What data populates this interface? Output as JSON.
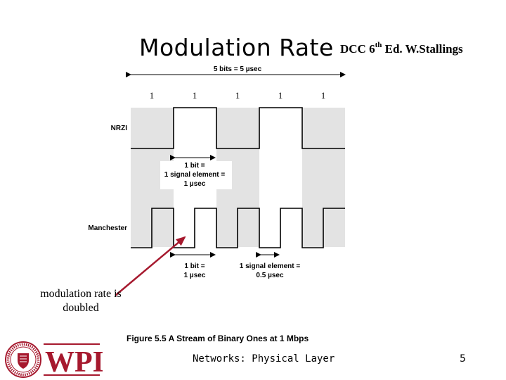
{
  "slide": {
    "title": "Modulation Rate",
    "reference_prefix": "DCC 6",
    "reference_sup": "th",
    "reference_suffix": " Ed. W.Stallings",
    "note": "modulation rate is doubled",
    "footer": "Networks: Physical Layer",
    "page_number": "5"
  },
  "figure": {
    "span_label": "5 bits = 5 µsec",
    "bit_values": [
      "1",
      "1",
      "1",
      "1",
      "1"
    ],
    "nrzi_label": "NRZI",
    "manchester_label": "Manchester",
    "nrzi_annotation": [
      "1 bit =",
      "1 signal element =",
      "1 µsec"
    ],
    "manchester_bit_annotation": [
      "1 bit =",
      "1 µsec"
    ],
    "manchester_signal_annotation": [
      "1 signal element =",
      "0.5 µsec"
    ],
    "caption": "Figure 5.5  A Stream of Binary Ones at 1 Mbps"
  },
  "logo": {
    "text": "WPI",
    "seal_text": "WORCESTER POLYTECHNIC INSTITUTE 1865",
    "color": "#a6192e"
  },
  "colors": {
    "grid_shade": "#e3e3e3",
    "arrow_red": "#a6192e"
  }
}
